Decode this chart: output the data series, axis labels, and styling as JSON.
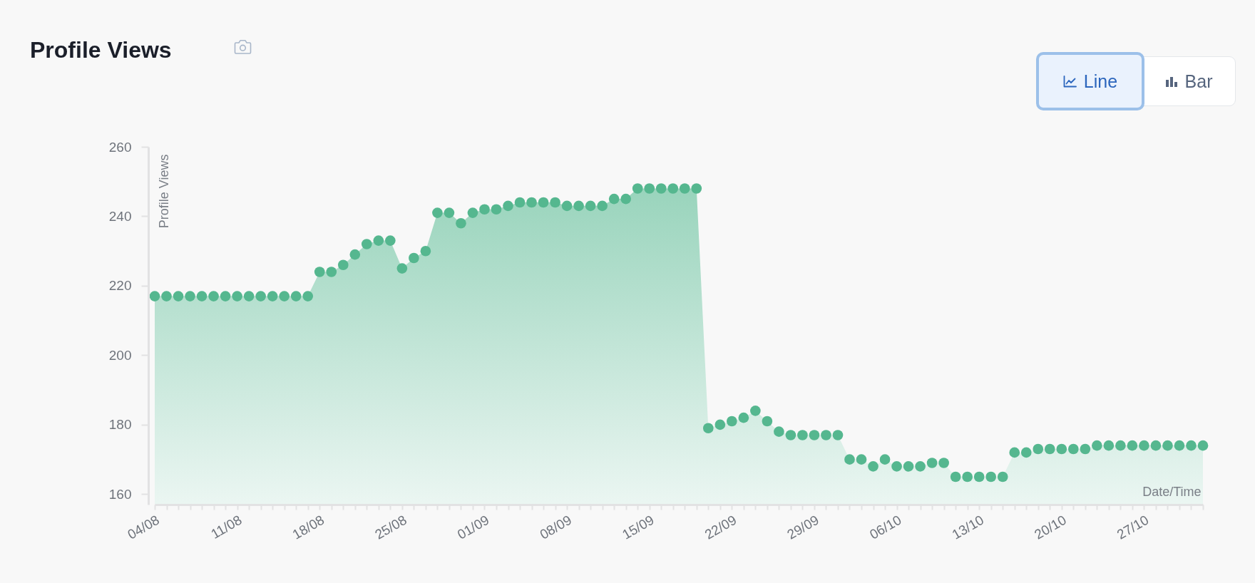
{
  "chart_data": {
    "type": "area",
    "title": "Profile Views",
    "xlabel": "Date/Time",
    "ylabel": "Profile Views",
    "annotations": [
      "Line",
      "Bar"
    ],
    "color": "#55b78f",
    "marker": "circle",
    "x": [
      "--08-04",
      "--08-05",
      "--08-06",
      "--08-07",
      "--08-08",
      "--08-09",
      "--08-10",
      "--08-11",
      "--08-12",
      "--08-13",
      "--08-14",
      "--08-15",
      "--08-16",
      "--08-17",
      "--08-18",
      "--08-19",
      "--08-20",
      "--08-21",
      "--08-22",
      "--08-23",
      "--08-24",
      "--08-25",
      "--08-26",
      "--08-27",
      "--08-28",
      "--08-29",
      "--08-30",
      "--08-31",
      "--09-01",
      "--09-02",
      "--09-03",
      "--09-04",
      "--09-05",
      "--09-06",
      "--09-07",
      "--09-08",
      "--09-09",
      "--09-10",
      "--09-11",
      "--09-12",
      "--09-13",
      "--09-14",
      "--09-15",
      "--09-16",
      "--09-17",
      "--09-18",
      "--09-19",
      "--09-20",
      "--09-21",
      "--09-22",
      "--09-23",
      "--09-24",
      "--09-25",
      "--09-26",
      "--09-27",
      "--09-28",
      "--09-29",
      "--09-30",
      "--10-01",
      "--10-02",
      "--10-03",
      "--10-04",
      "--10-05",
      "--10-06",
      "--10-07",
      "--10-08",
      "--10-09",
      "--10-10",
      "--10-11",
      "--10-12",
      "--10-13",
      "--10-14",
      "--10-15",
      "--10-16",
      "--10-17",
      "--10-18",
      "--10-19",
      "--10-20",
      "--10-21",
      "--10-22",
      "--10-23",
      "--10-24",
      "--10-25",
      "--10-26",
      "--10-27",
      "--10-28",
      "--10-29",
      "--10-30",
      "--10-31",
      "--11-01"
    ],
    "values": [
      217,
      217,
      217,
      217,
      217,
      217,
      217,
      217,
      217,
      217,
      217,
      217,
      217,
      217,
      224,
      224,
      226,
      229,
      232,
      233,
      233,
      225,
      228,
      230,
      241,
      241,
      238,
      241,
      242,
      242,
      243,
      244,
      244,
      244,
      244,
      243,
      243,
      243,
      243,
      245,
      245,
      248,
      248,
      248,
      248,
      248,
      248,
      179,
      180,
      181,
      182,
      184,
      181,
      178,
      177,
      177,
      177,
      177,
      177,
      170,
      170,
      168,
      170,
      168,
      168,
      168,
      169,
      169,
      165,
      165,
      165,
      165,
      165,
      172,
      172,
      173,
      173,
      173,
      173,
      173,
      174,
      174,
      174,
      174,
      174,
      174,
      174,
      174,
      174,
      174
    ],
    "xlim": [
      "--08-04",
      "--11-01"
    ],
    "xticks": [
      {
        "value": "--08-04",
        "label": "04/08"
      },
      {
        "value": "--08-05",
        "label": null
      },
      {
        "value": "--08-06",
        "label": null
      },
      {
        "value": "--08-07",
        "label": null
      },
      {
        "value": "--08-08",
        "label": null
      },
      {
        "value": "--08-09",
        "label": null
      },
      {
        "value": "--08-10",
        "label": null
      },
      {
        "value": "--08-11",
        "label": "11/08"
      },
      {
        "value": "--08-12",
        "label": null
      },
      {
        "value": "--08-13",
        "label": null
      },
      {
        "value": "--08-14",
        "label": null
      },
      {
        "value": "--08-15",
        "label": null
      },
      {
        "value": "--08-16",
        "label": null
      },
      {
        "value": "--08-17",
        "label": null
      },
      {
        "value": "--08-18",
        "label": "18/08"
      },
      {
        "value": "--08-19",
        "label": null
      },
      {
        "value": "--08-20",
        "label": null
      },
      {
        "value": "--08-21",
        "label": null
      },
      {
        "value": "--08-22",
        "label": null
      },
      {
        "value": "--08-23",
        "label": null
      },
      {
        "value": "--08-24",
        "label": null
      },
      {
        "value": "--08-25",
        "label": "25/08"
      },
      {
        "value": "--08-26",
        "label": null
      },
      {
        "value": "--08-27",
        "label": null
      },
      {
        "value": "--08-28",
        "label": null
      },
      {
        "value": "--08-29",
        "label": null
      },
      {
        "value": "--08-30",
        "label": null
      },
      {
        "value": "--08-31",
        "label": null
      },
      {
        "value": "--09-01",
        "label": "01/09"
      },
      {
        "value": "--09-02",
        "label": null
      },
      {
        "value": "--09-03",
        "label": null
      },
      {
        "value": "--09-04",
        "label": null
      },
      {
        "value": "--09-05",
        "label": null
      },
      {
        "value": "--09-06",
        "label": null
      },
      {
        "value": "--09-07",
        "label": null
      },
      {
        "value": "--09-08",
        "label": "08/09"
      },
      {
        "value": "--09-09",
        "label": null
      },
      {
        "value": "--09-10",
        "label": null
      },
      {
        "value": "--09-11",
        "label": null
      },
      {
        "value": "--09-12",
        "label": null
      },
      {
        "value": "--09-13",
        "label": null
      },
      {
        "value": "--09-14",
        "label": null
      },
      {
        "value": "--09-15",
        "label": "15/09"
      },
      {
        "value": "--09-16",
        "label": null
      },
      {
        "value": "--09-17",
        "label": null
      },
      {
        "value": "--09-18",
        "label": null
      },
      {
        "value": "--09-19",
        "label": null
      },
      {
        "value": "--09-20",
        "label": null
      },
      {
        "value": "--09-21",
        "label": null
      },
      {
        "value": "--09-22",
        "label": "22/09"
      },
      {
        "value": "--09-23",
        "label": null
      },
      {
        "value": "--09-24",
        "label": null
      },
      {
        "value": "--09-25",
        "label": null
      },
      {
        "value": "--09-26",
        "label": null
      },
      {
        "value": "--09-27",
        "label": null
      },
      {
        "value": "--09-28",
        "label": null
      },
      {
        "value": "--09-29",
        "label": "29/09"
      },
      {
        "value": "--09-30",
        "label": null
      },
      {
        "value": "--10-01",
        "label": null
      },
      {
        "value": "--10-02",
        "label": null
      },
      {
        "value": "--10-03",
        "label": null
      },
      {
        "value": "--10-04",
        "label": null
      },
      {
        "value": "--10-05",
        "label": null
      },
      {
        "value": "--10-06",
        "label": "06/10"
      },
      {
        "value": "--10-07",
        "label": null
      },
      {
        "value": "--10-08",
        "label": null
      },
      {
        "value": "--10-09",
        "label": null
      },
      {
        "value": "--10-10",
        "label": null
      },
      {
        "value": "--10-11",
        "label": null
      },
      {
        "value": "--10-12",
        "label": null
      },
      {
        "value": "--10-13",
        "label": "13/10"
      },
      {
        "value": "--10-14",
        "label": null
      },
      {
        "value": "--10-15",
        "label": null
      },
      {
        "value": "--10-16",
        "label": null
      },
      {
        "value": "--10-17",
        "label": null
      },
      {
        "value": "--10-18",
        "label": null
      },
      {
        "value": "--10-19",
        "label": null
      },
      {
        "value": "--10-20",
        "label": "20/10"
      },
      {
        "value": "--10-21",
        "label": null
      },
      {
        "value": "--10-22",
        "label": null
      },
      {
        "value": "--10-23",
        "label": null
      },
      {
        "value": "--10-24",
        "label": null
      },
      {
        "value": "--10-25",
        "label": null
      },
      {
        "value": "--10-26",
        "label": null
      },
      {
        "value": "--10-27",
        "label": "27/10"
      },
      {
        "value": "--10-28",
        "label": null
      },
      {
        "value": "--10-29",
        "label": null
      },
      {
        "value": "--10-30",
        "label": null
      },
      {
        "value": "--10-31",
        "label": null
      },
      {
        "value": "--11-01",
        "label": null
      }
    ],
    "ylim": [
      157,
      260
    ],
    "yticks": [
      160,
      180,
      200,
      220,
      240,
      260
    ]
  }
}
